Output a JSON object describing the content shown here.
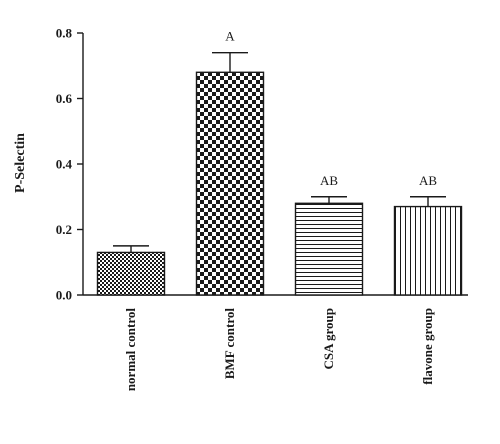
{
  "chart_data": {
    "type": "bar",
    "title": "",
    "xlabel": "",
    "ylabel": "P-Selectin",
    "ylim": [
      0,
      0.8
    ],
    "yticks": [
      0.0,
      0.2,
      0.4,
      0.6,
      0.8
    ],
    "ytick_labels": [
      "0.0",
      "0.2",
      "0.4",
      "0.6",
      "0.8"
    ],
    "grid": false,
    "categories": [
      "normal control",
      "BMF control",
      "CSA group",
      "flavone group"
    ],
    "values": [
      0.13,
      0.68,
      0.28,
      0.27
    ],
    "errors": [
      0.02,
      0.06,
      0.02,
      0.03
    ],
    "annotations": [
      "",
      "A",
      "AB",
      "AB"
    ],
    "fill_patterns": [
      "fine-checker",
      "coarse-checker",
      "horizontal-lines",
      "vertical-lines"
    ],
    "colors": {
      "ink": "#1a1a1a",
      "background": "#ffffff"
    }
  }
}
